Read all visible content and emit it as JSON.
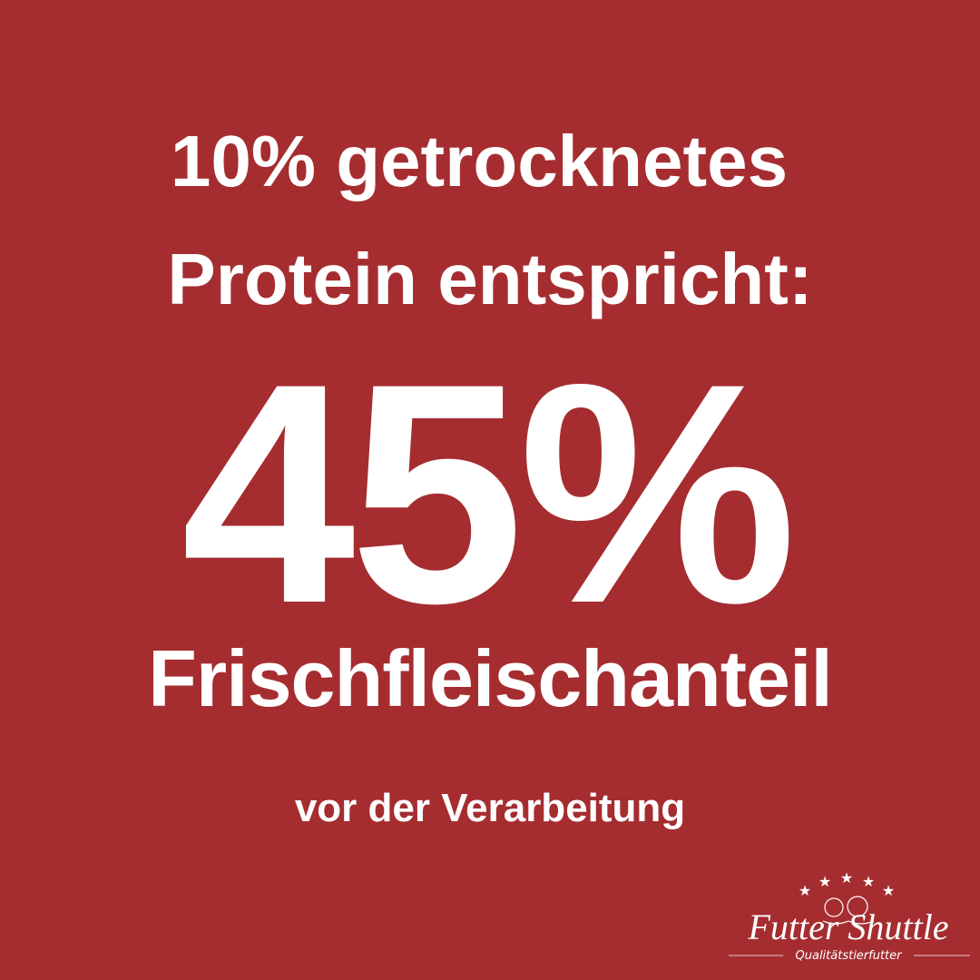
{
  "headline": {
    "line1": "10% getrocknetes",
    "line2": "Protein entspricht:"
  },
  "big_value": "45%",
  "label": "Frischfleischanteil",
  "subtitle": "vor der Verarbeitung",
  "logo": {
    "brand": "Futter Shuttle",
    "tagline": "Qualitätstierfutter",
    "stars": 5
  },
  "colors": {
    "background": "#A52D30",
    "text": "#FFFFFF"
  }
}
